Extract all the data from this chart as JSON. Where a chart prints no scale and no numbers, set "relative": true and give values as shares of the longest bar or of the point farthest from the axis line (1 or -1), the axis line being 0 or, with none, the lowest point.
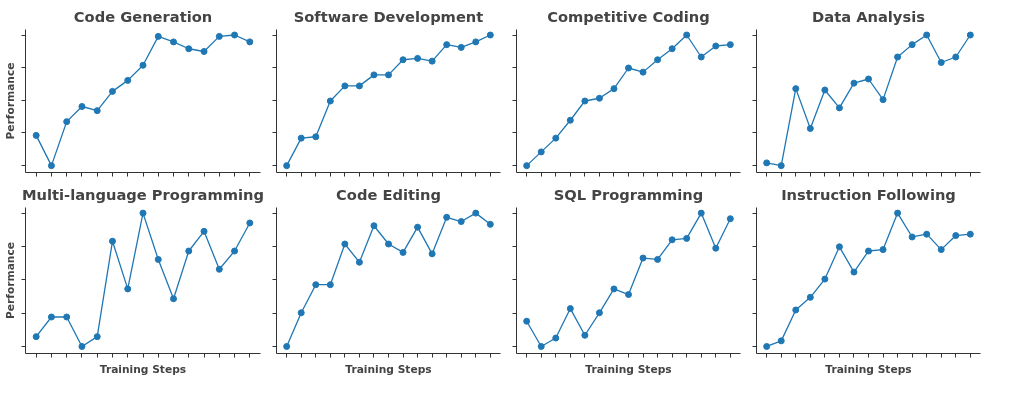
{
  "chart_data": [
    {
      "type": "line",
      "title": "Code Generation",
      "ylabel": "Performance",
      "relative": true,
      "marker": "circle",
      "categories": [
        null,
        null,
        null,
        null,
        null,
        null,
        null,
        null,
        null,
        null,
        null,
        null,
        null,
        null,
        null
      ],
      "color": "#1f77b4",
      "values": [
        0.27,
        0.05,
        0.37,
        0.48,
        0.45,
        0.59,
        0.67,
        0.78,
        0.99,
        0.95,
        0.9,
        0.88,
        0.99,
        1,
        0.95
      ]
    },
    {
      "type": "line",
      "title": "Software Development",
      "relative": true,
      "marker": "circle",
      "categories": [
        null,
        null,
        null,
        null,
        null,
        null,
        null,
        null,
        null,
        null,
        null,
        null,
        null,
        null,
        null
      ],
      "color": "#1f77b4",
      "values": [
        0.05,
        0.25,
        0.26,
        0.52,
        0.63,
        0.63,
        0.71,
        0.71,
        0.82,
        0.83,
        0.81,
        0.93,
        0.91,
        0.95,
        1
      ]
    },
    {
      "type": "line",
      "title": "Competitive Coding",
      "relative": true,
      "marker": "circle",
      "categories": [
        null,
        null,
        null,
        null,
        null,
        null,
        null,
        null,
        null,
        null,
        null,
        null,
        null,
        null,
        null
      ],
      "color": "#1f77b4",
      "values": [
        0.05,
        0.15,
        0.25,
        0.38,
        0.52,
        0.54,
        0.61,
        0.76,
        0.73,
        0.82,
        0.9,
        1,
        0.84,
        0.92,
        0.93
      ]
    },
    {
      "type": "line",
      "title": "Data Analysis",
      "relative": true,
      "marker": "circle",
      "categories": [
        null,
        null,
        null,
        null,
        null,
        null,
        null,
        null,
        null,
        null,
        null,
        null,
        null,
        null,
        null
      ],
      "color": "#1f77b4",
      "values": [
        0.07,
        0.05,
        0.61,
        0.32,
        0.6,
        0.47,
        0.65,
        0.68,
        0.53,
        0.84,
        0.93,
        1,
        0.8,
        0.84,
        1
      ]
    },
    {
      "type": "line",
      "title": "Multi-language Programming",
      "ylabel": "Performance",
      "xlabel": "Training Steps",
      "relative": true,
      "marker": "circle",
      "categories": [
        null,
        null,
        null,
        null,
        null,
        null,
        null,
        null,
        null,
        null,
        null,
        null,
        null,
        null,
        null
      ],
      "color": "#1f77b4",
      "values": [
        0.12,
        0.26,
        0.26,
        0.05,
        0.12,
        0.8,
        0.46,
        1,
        0.67,
        0.39,
        0.73,
        0.87,
        0.6,
        0.73,
        0.93
      ]
    },
    {
      "type": "line",
      "title": "Code Editing",
      "xlabel": "Training Steps",
      "relative": true,
      "marker": "circle",
      "categories": [
        null,
        null,
        null,
        null,
        null,
        null,
        null,
        null,
        null,
        null,
        null,
        null,
        null,
        null,
        null
      ],
      "color": "#1f77b4",
      "values": [
        0.05,
        0.29,
        0.49,
        0.49,
        0.78,
        0.65,
        0.91,
        0.78,
        0.72,
        0.9,
        0.71,
        0.97,
        0.94,
        1,
        0.92
      ]
    },
    {
      "type": "line",
      "title": "SQL Programming",
      "xlabel": "Training Steps",
      "relative": true,
      "marker": "circle",
      "categories": [
        null,
        null,
        null,
        null,
        null,
        null,
        null,
        null,
        null,
        null,
        null,
        null,
        null,
        null,
        null
      ],
      "color": "#1f77b4",
      "values": [
        0.23,
        0.05,
        0.11,
        0.32,
        0.13,
        0.29,
        0.46,
        0.42,
        0.68,
        0.67,
        0.81,
        0.82,
        1,
        0.75,
        0.96
      ]
    },
    {
      "type": "line",
      "title": "Instruction Following",
      "xlabel": "Training Steps",
      "relative": true,
      "marker": "circle",
      "categories": [
        null,
        null,
        null,
        null,
        null,
        null,
        null,
        null,
        null,
        null,
        null,
        null,
        null,
        null,
        null
      ],
      "color": "#1f77b4",
      "values": [
        0.05,
        0.09,
        0.31,
        0.4,
        0.53,
        0.76,
        0.58,
        0.73,
        0.74,
        1,
        0.83,
        0.85,
        0.74,
        0.84,
        0.85
      ]
    }
  ]
}
